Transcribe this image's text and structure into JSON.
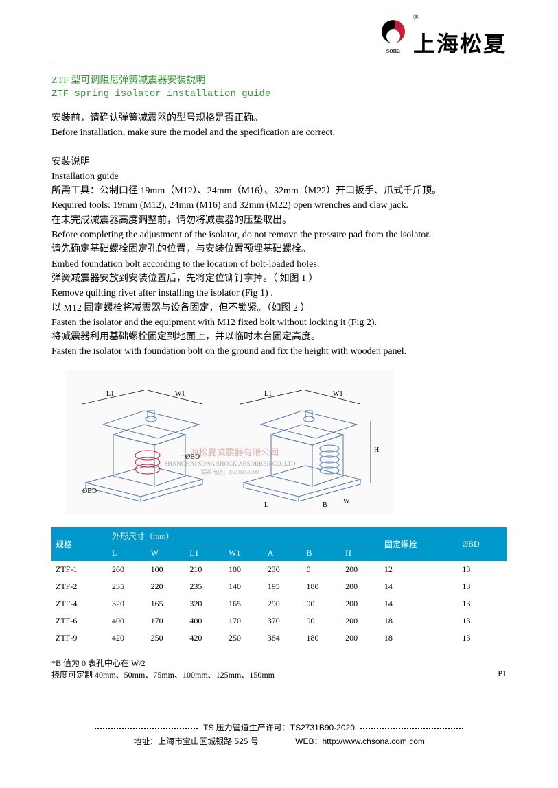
{
  "header": {
    "brand_cn": "上海松夏",
    "sona": "sona",
    "reg": "®"
  },
  "title": {
    "cn": "ZTF 型可调阻尼弹簧减震器安装說明",
    "en": "ZTF spring isolator installation guide"
  },
  "paragraphs": [
    "安装前，请确认弹簧减震器的型号规格是否正确。",
    "Before installation, make sure the model and the specification are  correct.",
    "",
    "安装说明",
    "Installation guide",
    "所需工具：公制口径 19mm（M12）、24mm（M16）、32mm（M22）开口扳手、爪式千斤顶。",
    "Required tools: 19mm (M12), 24mm (M16) and 32mm (M22) open wrenches and claw jack.",
    "在未完成减震器高度调整前，请勿将减震器的压垫取出。",
    "Before completing the adjustment of the isolator, do not remove the pressure pad from the isolator.",
    "请先确定基础螺栓固定孔的位置，与安装位置预埋基础螺栓。",
    "Embed foundation bolt according to the location of bolt-loaded holes.",
    "弹簧减震器安放到安装位置后，先将定位铆钉拿掉。（ 如图 1 ）",
    "Remove quilting rivet after installing the isolator (Fig 1) .",
    "以 M12 固定螺栓将减震器与设备固定，但不锁紧。（如图 2 ）",
    "Fasten the isolator and the equipment with M12 fixed bolt without locking it (Fig 2).",
    "将减震器利用基础螺栓固定到地面上，并以临时木台固定高度。",
    "Fasten the isolator with foundation bolt on the ground and fix the height with wooden panel."
  ],
  "table": {
    "group_dims": "外形尺寸（mm）",
    "group_bolt": "固定螺栓",
    "col_spec": "规格",
    "col_L": "L",
    "col_W": "W",
    "col_L1": "L1",
    "col_W1": "W1",
    "col_A": "A",
    "col_B": "B",
    "col_H": "H",
    "col_bolt": "",
    "col_OBD": "ØBD",
    "rows": [
      {
        "spec": "ZTF-1",
        "L": "260",
        "W": "100",
        "L1": "210",
        "W1": "100",
        "A": "230",
        "B": "0",
        "H": "200",
        "bolt": "12",
        "OBD": "13"
      },
      {
        "spec": "ZTF-2",
        "L": "235",
        "W": "220",
        "L1": "235",
        "W1": "140",
        "A": "195",
        "B": "180",
        "H": "200",
        "bolt": "14",
        "OBD": "13"
      },
      {
        "spec": "ZTF-4",
        "L": "320",
        "W": "165",
        "L1": "320",
        "W1": "165",
        "A": "290",
        "B": "90",
        "H": "200",
        "bolt": "14",
        "OBD": "13"
      },
      {
        "spec": "ZTF-6",
        "L": "400",
        "W": "170",
        "L1": "400",
        "W1": "170",
        "A": "370",
        "B": "90",
        "H": "200",
        "bolt": "18",
        "OBD": "13"
      },
      {
        "spec": "ZTF-9",
        "L": "420",
        "W": "250",
        "L1": "420",
        "W1": "250",
        "A": "384",
        "B": "180",
        "H": "200",
        "bolt": "18",
        "OBD": "13"
      }
    ]
  },
  "notes": {
    "n1": "*B 值为 0 表孔中心在 W/2",
    "n2": "挠度可定制 40mm、50mm、75mm、100mm、125mm、150mm",
    "page": "P1"
  },
  "footer": {
    "line1": "TS 压力管道生产许可：TS2731B90-2020",
    "addr": "地址：上海市宝山区城银路 525 号",
    "web": "WEB：http://www.chsona.com.com"
  },
  "colors": {
    "green": "#339933",
    "blue_header": "#0099cc",
    "logo_red": "#c41e3a"
  }
}
